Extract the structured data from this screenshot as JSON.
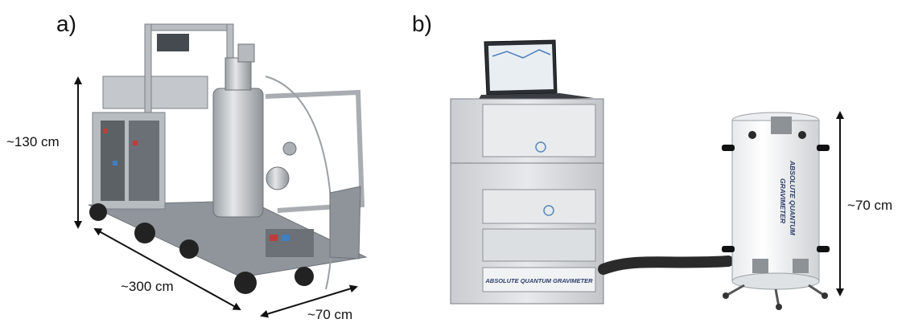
{
  "panels": {
    "a": {
      "label": "a)",
      "dimensions": {
        "height": "~130 cm",
        "length": "~300 cm",
        "width": "~70 cm"
      }
    },
    "b": {
      "label": "b)",
      "dimensions": {
        "height": "~70 cm"
      },
      "device_text": {
        "rack_label": "ABSOLUTE QUANTUM GRAVIMETER",
        "sensor_label_line1": "ABSOLUTE QUANTUM",
        "sensor_label_line2": "GRAVIMETER"
      }
    }
  },
  "colors": {
    "arrow": "#111111",
    "frame": "#b9bcc0",
    "rack_case": "#d6d8da",
    "sensor_body": "#f4f5f6",
    "cable": "#2a2a2a"
  }
}
